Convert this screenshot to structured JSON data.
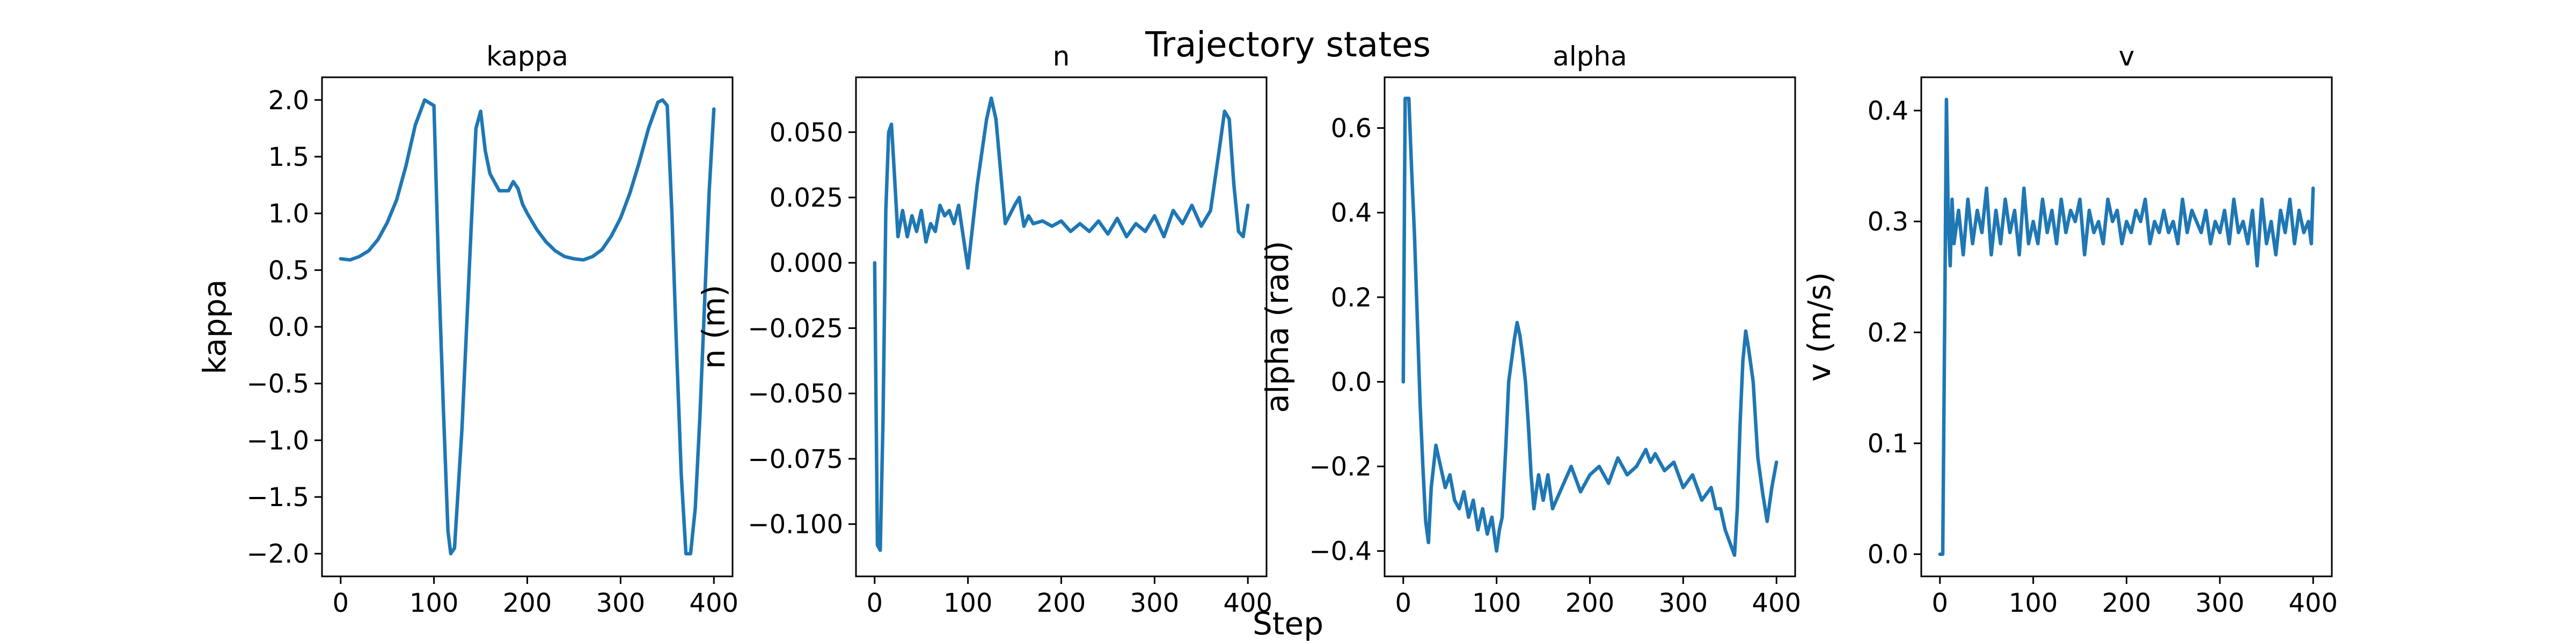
{
  "figure": {
    "suptitle": "Trajectory states",
    "xlabel": "Step"
  },
  "colors": {
    "series": "#1f77b4"
  },
  "chart_data": [
    {
      "type": "line",
      "title": "kappa",
      "xlabel": "",
      "ylabel": "kappa",
      "xlim": [
        -20,
        420
      ],
      "ylim": [
        -2.2,
        2.2
      ],
      "xticks": [
        0,
        100,
        200,
        300,
        400
      ],
      "yticks": [
        -2.0,
        -1.5,
        -1.0,
        -0.5,
        0.0,
        0.5,
        1.0,
        1.5,
        2.0
      ],
      "ytick_labels": [
        "−2.0",
        "−1.5",
        "−1.0",
        "−0.5",
        "0.0",
        "0.5",
        "1.0",
        "1.5",
        "2.0"
      ],
      "grid": false,
      "series": [
        {
          "x": [
            0,
            10,
            20,
            30,
            40,
            50,
            60,
            70,
            80,
            90,
            100,
            105,
            110,
            115,
            118,
            122,
            130,
            140,
            145,
            150,
            155,
            160,
            170,
            180,
            185,
            190,
            195,
            200,
            210,
            220,
            230,
            240,
            250,
            260,
            270,
            280,
            290,
            300,
            310,
            320,
            330,
            340,
            345,
            350,
            355,
            360,
            365,
            370,
            375,
            380,
            385,
            390,
            395,
            400
          ],
          "y": [
            0.6,
            0.59,
            0.62,
            0.67,
            0.77,
            0.92,
            1.12,
            1.42,
            1.78,
            2.0,
            1.95,
            0.5,
            -0.7,
            -1.8,
            -2.0,
            -1.95,
            -0.9,
            0.9,
            1.75,
            1.9,
            1.55,
            1.35,
            1.2,
            1.2,
            1.28,
            1.22,
            1.08,
            1.0,
            0.86,
            0.75,
            0.67,
            0.62,
            0.6,
            0.59,
            0.62,
            0.68,
            0.8,
            0.96,
            1.18,
            1.45,
            1.75,
            1.98,
            2.0,
            1.95,
            1.0,
            -0.2,
            -1.3,
            -2.0,
            -2.0,
            -1.6,
            -0.8,
            0.2,
            1.2,
            1.92
          ]
        }
      ]
    },
    {
      "type": "line",
      "title": "n",
      "xlabel": "",
      "ylabel": "n (m)",
      "xlim": [
        -20,
        420
      ],
      "ylim": [
        -0.12,
        0.071
      ],
      "xticks": [
        0,
        100,
        200,
        300,
        400
      ],
      "yticks": [
        -0.1,
        -0.075,
        -0.05,
        -0.025,
        0.0,
        0.025,
        0.05
      ],
      "ytick_labels": [
        "−0.100",
        "−0.075",
        "−0.050",
        "−0.025",
        "0.000",
        "0.025",
        "0.050"
      ],
      "grid": false,
      "series": [
        {
          "x": [
            0,
            3,
            6,
            9,
            12,
            15,
            18,
            21,
            25,
            30,
            35,
            40,
            45,
            50,
            55,
            60,
            65,
            70,
            75,
            80,
            85,
            90,
            95,
            100,
            110,
            120,
            125,
            130,
            135,
            140,
            150,
            155,
            160,
            165,
            170,
            180,
            190,
            200,
            210,
            220,
            230,
            240,
            250,
            260,
            270,
            280,
            290,
            300,
            310,
            320,
            330,
            340,
            350,
            360,
            370,
            375,
            380,
            385,
            390,
            395,
            400
          ],
          "y": [
            0.0,
            -0.108,
            -0.11,
            -0.06,
            0.02,
            0.05,
            0.053,
            0.035,
            0.01,
            0.02,
            0.01,
            0.018,
            0.012,
            0.02,
            0.008,
            0.015,
            0.012,
            0.022,
            0.018,
            0.02,
            0.015,
            0.022,
            0.01,
            -0.002,
            0.03,
            0.055,
            0.063,
            0.055,
            0.035,
            0.015,
            0.022,
            0.025,
            0.014,
            0.018,
            0.015,
            0.016,
            0.014,
            0.016,
            0.012,
            0.015,
            0.012,
            0.016,
            0.011,
            0.017,
            0.01,
            0.015,
            0.012,
            0.018,
            0.01,
            0.02,
            0.015,
            0.022,
            0.014,
            0.02,
            0.045,
            0.058,
            0.055,
            0.03,
            0.012,
            0.01,
            0.022
          ]
        }
      ]
    },
    {
      "type": "line",
      "title": "alpha",
      "xlabel": "",
      "ylabel": "alpha (rad)",
      "xlim": [
        -20,
        420
      ],
      "ylim": [
        -0.46,
        0.72
      ],
      "xticks": [
        0,
        100,
        200,
        300,
        400
      ],
      "yticks": [
        -0.4,
        -0.2,
        0.0,
        0.2,
        0.4,
        0.6
      ],
      "ytick_labels": [
        "−0.4",
        "−0.2",
        "0.0",
        "0.2",
        "0.4",
        "0.6"
      ],
      "grid": false,
      "series": [
        {
          "x": [
            0,
            2,
            4,
            6,
            9,
            12,
            15,
            18,
            21,
            24,
            27,
            30,
            35,
            40,
            45,
            50,
            55,
            60,
            65,
            70,
            75,
            80,
            85,
            90,
            95,
            100,
            103,
            106,
            110,
            113,
            116,
            119,
            122,
            125,
            128,
            131,
            134,
            137,
            140,
            145,
            150,
            155,
            160,
            170,
            180,
            190,
            200,
            210,
            220,
            230,
            240,
            250,
            260,
            265,
            270,
            280,
            290,
            300,
            310,
            320,
            330,
            335,
            340,
            345,
            350,
            355,
            358,
            361,
            364,
            367,
            370,
            375,
            380,
            385,
            390,
            395,
            400
          ],
          "y": [
            0.0,
            0.67,
            0.67,
            0.67,
            0.5,
            0.35,
            0.15,
            -0.05,
            -0.2,
            -0.33,
            -0.38,
            -0.25,
            -0.15,
            -0.2,
            -0.25,
            -0.22,
            -0.28,
            -0.3,
            -0.26,
            -0.32,
            -0.28,
            -0.35,
            -0.3,
            -0.36,
            -0.32,
            -0.4,
            -0.35,
            -0.32,
            -0.15,
            0.0,
            0.05,
            0.1,
            0.14,
            0.11,
            0.06,
            0.0,
            -0.1,
            -0.22,
            -0.3,
            -0.22,
            -0.28,
            -0.22,
            -0.3,
            -0.25,
            -0.2,
            -0.26,
            -0.22,
            -0.2,
            -0.24,
            -0.18,
            -0.22,
            -0.2,
            -0.16,
            -0.19,
            -0.17,
            -0.21,
            -0.19,
            -0.25,
            -0.22,
            -0.28,
            -0.25,
            -0.3,
            -0.3,
            -0.35,
            -0.38,
            -0.41,
            -0.3,
            -0.1,
            0.05,
            0.12,
            0.08,
            0.0,
            -0.18,
            -0.26,
            -0.33,
            -0.25,
            -0.19
          ]
        }
      ]
    },
    {
      "type": "line",
      "title": "v",
      "xlabel": "",
      "ylabel": "v (m/s)",
      "xlim": [
        -20,
        420
      ],
      "ylim": [
        -0.02,
        0.43
      ],
      "xticks": [
        0,
        100,
        200,
        300,
        400
      ],
      "yticks": [
        0.0,
        0.1,
        0.2,
        0.3,
        0.4
      ],
      "ytick_labels": [
        "0.0",
        "0.1",
        "0.2",
        "0.3",
        "0.4"
      ],
      "grid": false,
      "series": [
        {
          "x": [
            0,
            3,
            5,
            7,
            9,
            11,
            13,
            15,
            20,
            25,
            30,
            35,
            40,
            45,
            50,
            55,
            60,
            65,
            70,
            75,
            80,
            85,
            90,
            95,
            100,
            105,
            110,
            115,
            120,
            125,
            130,
            135,
            140,
            145,
            150,
            155,
            160,
            165,
            170,
            175,
            180,
            185,
            190,
            195,
            200,
            205,
            210,
            215,
            220,
            225,
            230,
            235,
            240,
            245,
            250,
            255,
            260,
            265,
            270,
            275,
            280,
            285,
            290,
            295,
            300,
            305,
            310,
            315,
            320,
            325,
            330,
            335,
            340,
            345,
            350,
            355,
            360,
            365,
            370,
            375,
            380,
            385,
            390,
            395,
            398,
            400
          ],
          "y": [
            0.0,
            0.0,
            0.2,
            0.41,
            0.3,
            0.26,
            0.32,
            0.28,
            0.31,
            0.27,
            0.32,
            0.28,
            0.31,
            0.29,
            0.33,
            0.27,
            0.31,
            0.28,
            0.32,
            0.29,
            0.31,
            0.27,
            0.33,
            0.28,
            0.3,
            0.28,
            0.32,
            0.29,
            0.31,
            0.28,
            0.32,
            0.29,
            0.31,
            0.3,
            0.32,
            0.27,
            0.31,
            0.29,
            0.3,
            0.28,
            0.32,
            0.3,
            0.31,
            0.28,
            0.3,
            0.29,
            0.31,
            0.3,
            0.32,
            0.28,
            0.3,
            0.29,
            0.31,
            0.29,
            0.3,
            0.28,
            0.32,
            0.29,
            0.31,
            0.3,
            0.29,
            0.31,
            0.28,
            0.3,
            0.29,
            0.31,
            0.28,
            0.32,
            0.29,
            0.3,
            0.28,
            0.31,
            0.26,
            0.32,
            0.28,
            0.3,
            0.27,
            0.31,
            0.29,
            0.32,
            0.28,
            0.31,
            0.29,
            0.3,
            0.28,
            0.33
          ]
        }
      ]
    }
  ]
}
